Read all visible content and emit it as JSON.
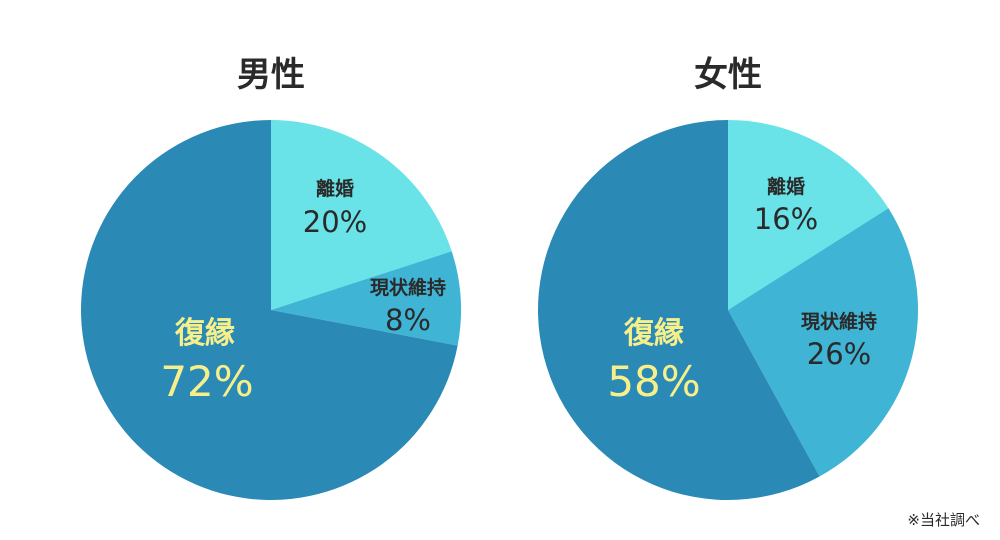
{
  "chart_data": [
    {
      "type": "pie",
      "title": "男性",
      "slices": [
        {
          "label": "離婚",
          "value": 20,
          "value_label": "20%",
          "color": "#6ae3e8"
        },
        {
          "label": "現状維持",
          "value": 8,
          "value_label": "8%",
          "color": "#3fb4d4"
        },
        {
          "label": "復縁",
          "value": 72,
          "value_label": "72%",
          "color": "#2b89b6",
          "highlight": true
        }
      ],
      "start": "12 o'clock",
      "direction": "clockwise"
    },
    {
      "type": "pie",
      "title": "女性",
      "slices": [
        {
          "label": "離婚",
          "value": 16,
          "value_label": "16%",
          "color": "#6ae3e8"
        },
        {
          "label": "現状維持",
          "value": 26,
          "value_label": "26%",
          "color": "#3fb4d4"
        },
        {
          "label": "復縁",
          "value": 58,
          "value_label": "58%",
          "color": "#2b89b6",
          "highlight": true
        }
      ],
      "start": "12 o'clock",
      "direction": "clockwise"
    }
  ],
  "colors": {
    "highlight_text": "#f7f08a",
    "text": "#2a2a2a"
  },
  "note": "※当社調べ"
}
